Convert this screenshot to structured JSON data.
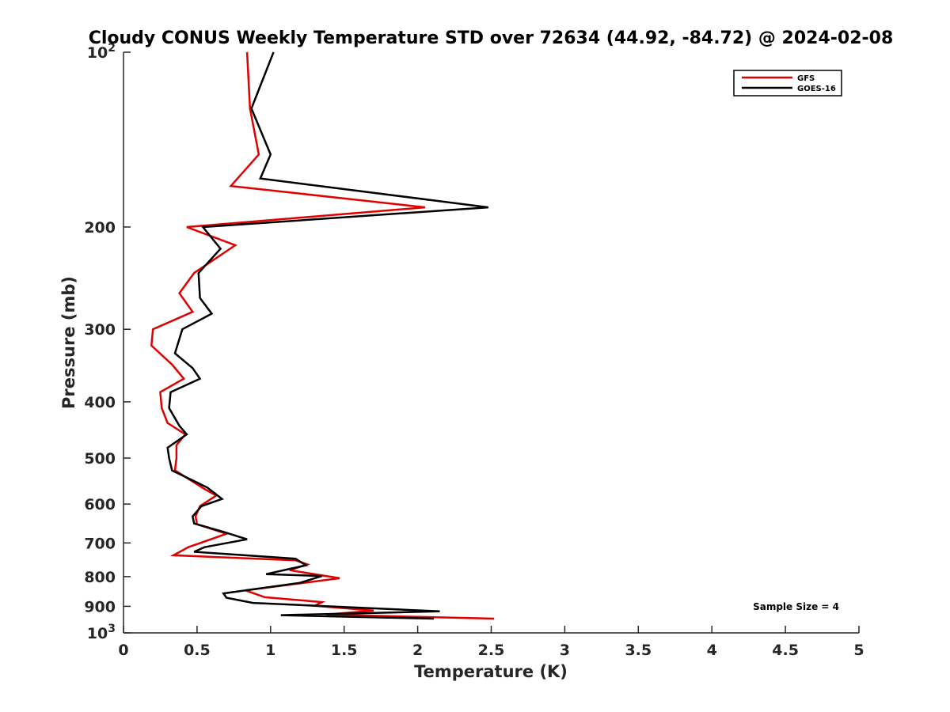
{
  "chart_data": {
    "type": "line",
    "title": "Cloudy CONUS Weekly Temperature STD over 72634 (44.92, -84.72) @ 2024-02-08",
    "xlabel": "Temperature (K)",
    "ylabel": "Pressure (mb)",
    "xlim": [
      0,
      5
    ],
    "ylim": [
      100,
      1000
    ],
    "y_scale": "log",
    "y_reversed": true,
    "x_ticks": [
      0,
      0.5,
      1,
      1.5,
      2,
      2.5,
      3,
      3.5,
      4,
      4.5,
      5
    ],
    "x_tick_labels": [
      "0",
      "0.5",
      "1",
      "1.5",
      "2",
      "2.5",
      "3",
      "3.5",
      "4",
      "4.5",
      "5"
    ],
    "y_ticks": [
      100,
      200,
      300,
      400,
      500,
      600,
      700,
      800,
      900,
      1000
    ],
    "y_tick_labels": [
      {
        "base": "10",
        "exp": "2"
      },
      {
        "base": "200"
      },
      {
        "base": "300"
      },
      {
        "base": "400"
      },
      {
        "base": "500"
      },
      {
        "base": "600"
      },
      {
        "base": "700"
      },
      {
        "base": "800"
      },
      {
        "base": "900"
      },
      {
        "base": "10",
        "exp": "3"
      }
    ],
    "grid": false,
    "legend_position": "top-right",
    "annotation": "Sample Size = 4",
    "series": [
      {
        "name": "GFS",
        "color": "#e00000",
        "points": [
          [
            0.84,
            100
          ],
          [
            0.86,
            125
          ],
          [
            0.92,
            150
          ],
          [
            0.73,
            170
          ],
          [
            2.05,
            185
          ],
          [
            0.43,
            200
          ],
          [
            0.76,
            215
          ],
          [
            0.48,
            240
          ],
          [
            0.38,
            260
          ],
          [
            0.47,
            280
          ],
          [
            0.2,
            300
          ],
          [
            0.19,
            320
          ],
          [
            0.33,
            345
          ],
          [
            0.41,
            365
          ],
          [
            0.25,
            385
          ],
          [
            0.26,
            410
          ],
          [
            0.3,
            435
          ],
          [
            0.42,
            455
          ],
          [
            0.36,
            475
          ],
          [
            0.36,
            500
          ],
          [
            0.35,
            525
          ],
          [
            0.55,
            565
          ],
          [
            0.63,
            580
          ],
          [
            0.52,
            605
          ],
          [
            0.49,
            630
          ],
          [
            0.5,
            650
          ],
          [
            0.7,
            675
          ],
          [
            0.44,
            712
          ],
          [
            0.34,
            735
          ],
          [
            1.17,
            750
          ],
          [
            1.25,
            762
          ],
          [
            1.13,
            780
          ],
          [
            1.47,
            805
          ],
          [
            0.83,
            845
          ],
          [
            0.96,
            868
          ],
          [
            1.35,
            885
          ],
          [
            1.3,
            898
          ],
          [
            1.7,
            915
          ],
          [
            1.38,
            930
          ],
          [
            2.52,
            945
          ]
        ]
      },
      {
        "name": "GOES-16",
        "color": "#000000",
        "points": [
          [
            1.02,
            100
          ],
          [
            0.87,
            125
          ],
          [
            1.0,
            150
          ],
          [
            0.93,
            165
          ],
          [
            2.48,
            185
          ],
          [
            0.54,
            200
          ],
          [
            0.66,
            218
          ],
          [
            0.51,
            240
          ],
          [
            0.52,
            265
          ],
          [
            0.6,
            282
          ],
          [
            0.4,
            300
          ],
          [
            0.35,
            330
          ],
          [
            0.47,
            350
          ],
          [
            0.52,
            365
          ],
          [
            0.32,
            385
          ],
          [
            0.31,
            410
          ],
          [
            0.38,
            440
          ],
          [
            0.43,
            455
          ],
          [
            0.3,
            480
          ],
          [
            0.31,
            500
          ],
          [
            0.33,
            525
          ],
          [
            0.57,
            562
          ],
          [
            0.67,
            588
          ],
          [
            0.53,
            605
          ],
          [
            0.47,
            630
          ],
          [
            0.48,
            648
          ],
          [
            0.68,
            670
          ],
          [
            0.84,
            690
          ],
          [
            0.55,
            712
          ],
          [
            0.48,
            725
          ],
          [
            1.17,
            745
          ],
          [
            1.24,
            765
          ],
          [
            0.97,
            792
          ],
          [
            1.35,
            798
          ],
          [
            1.2,
            820
          ],
          [
            0.68,
            855
          ],
          [
            0.7,
            870
          ],
          [
            0.88,
            888
          ],
          [
            2.15,
            918
          ],
          [
            1.07,
            932
          ],
          [
            2.11,
            945
          ]
        ]
      }
    ]
  }
}
